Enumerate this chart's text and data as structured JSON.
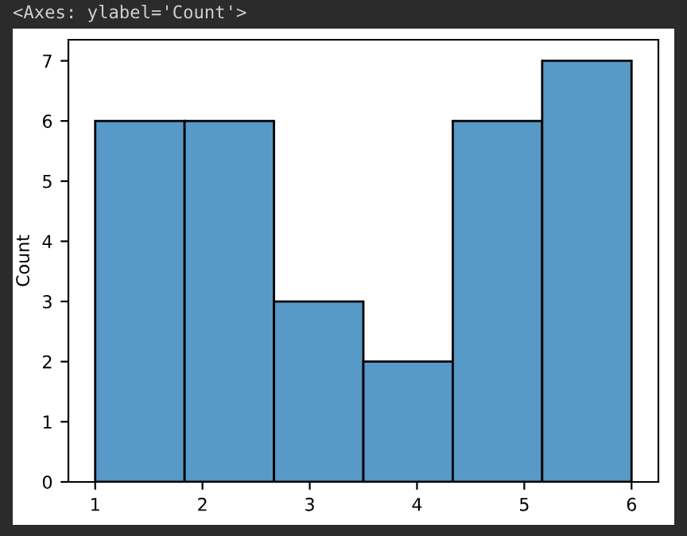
{
  "chart_data": {
    "type": "histogram",
    "ylabel": "Count",
    "annotations": [
      "<Axes: ylabel='Count'>"
    ],
    "bins": [
      1,
      1.8333,
      2.6667,
      3.5,
      4.3333,
      5.1667,
      6
    ],
    "values": [
      6,
      6,
      3,
      2,
      6,
      7
    ],
    "color": "#5799c7",
    "xlim": [
      0.75,
      6.25
    ],
    "xticks": [
      1,
      2,
      3,
      4,
      5,
      6
    ],
    "ylim": [
      0,
      7.35
    ],
    "yticks": [
      0,
      1,
      2,
      3,
      4,
      5,
      6,
      7
    ],
    "grid": false
  }
}
